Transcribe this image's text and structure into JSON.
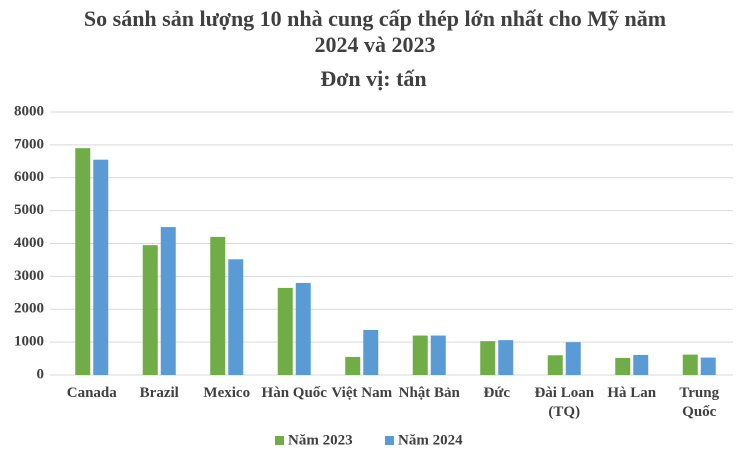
{
  "chart_data": {
    "type": "bar",
    "title": "So sánh sản lượng 10 nhà cung cấp thép lớn nhất cho Mỹ năm 2024 và 2023",
    "subtitle": "Đơn vị: tấn",
    "categories": [
      "Canada",
      "Brazil",
      "Mexico",
      "Hàn Quốc",
      "Việt Nam",
      "Nhật Bản",
      "Đức",
      "Đài Loan (TQ)",
      "Hà Lan",
      "Trung Quốc"
    ],
    "series": [
      {
        "name": "Năm 2023",
        "color": "#70ad47",
        "values": [
          6900,
          3950,
          4200,
          2650,
          550,
          1200,
          1030,
          600,
          520,
          620
        ]
      },
      {
        "name": "Năm 2024",
        "color": "#5b9bd5",
        "values": [
          6550,
          4500,
          3520,
          2800,
          1370,
          1200,
          1060,
          1000,
          610,
          530
        ]
      }
    ],
    "ylim": [
      0,
      8000
    ],
    "yticks": [
      0,
      1000,
      2000,
      3000,
      4000,
      5000,
      6000,
      7000,
      8000
    ],
    "grid": true,
    "legend": "bottom"
  }
}
